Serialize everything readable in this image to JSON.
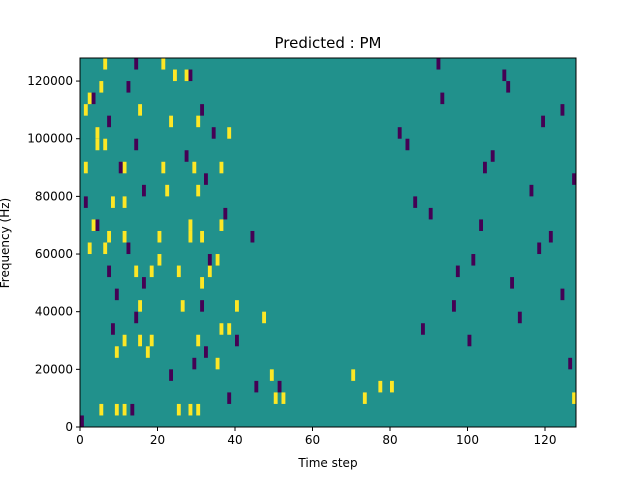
{
  "chart_data": {
    "type": "heatmap",
    "title": "Predicted : PM",
    "xlabel": "Time step",
    "ylabel": "Frequency (Hz)",
    "xlim": [
      0,
      128
    ],
    "ylim": [
      0,
      128000
    ],
    "x_ticks": [
      0,
      20,
      40,
      60,
      80,
      100,
      120
    ],
    "x_tick_labels": [
      "0",
      "20",
      "40",
      "60",
      "80",
      "100",
      "120"
    ],
    "y_ticks": [
      0,
      20000,
      40000,
      60000,
      80000,
      100000,
      120000
    ],
    "y_tick_labels": [
      "0",
      "20000",
      "40000",
      "60000",
      "80000",
      "100000",
      "120000"
    ],
    "grid": false,
    "colors": {
      "background": "#21918c",
      "high": "#fde725",
      "low": "#440154"
    },
    "rows": 32,
    "cols": 128,
    "bin_height_hz": 4000,
    "high_cells": [
      [
        1,
        5
      ],
      [
        1,
        9
      ],
      [
        1,
        11
      ],
      [
        1,
        25
      ],
      [
        1,
        28
      ],
      [
        1,
        30
      ],
      [
        2,
        50
      ],
      [
        2,
        52
      ],
      [
        2,
        73
      ],
      [
        2,
        127
      ],
      [
        3,
        77
      ],
      [
        3,
        80
      ],
      [
        4,
        49
      ],
      [
        4,
        70
      ],
      [
        5,
        35
      ],
      [
        6,
        9
      ],
      [
        6,
        17
      ],
      [
        7,
        11
      ],
      [
        7,
        15
      ],
      [
        7,
        18
      ],
      [
        7,
        30
      ],
      [
        8,
        36
      ],
      [
        8,
        38
      ],
      [
        9,
        47
      ],
      [
        10,
        15
      ],
      [
        10,
        26
      ],
      [
        10,
        40
      ],
      [
        12,
        31
      ],
      [
        13,
        14
      ],
      [
        13,
        18
      ],
      [
        13,
        25
      ],
      [
        13,
        33
      ],
      [
        14,
        20
      ],
      [
        14,
        35
      ],
      [
        15,
        2
      ],
      [
        15,
        6
      ],
      [
        16,
        7
      ],
      [
        16,
        11
      ],
      [
        16,
        20
      ],
      [
        16,
        28
      ],
      [
        16,
        31
      ],
      [
        17,
        3
      ],
      [
        17,
        28
      ],
      [
        17,
        36
      ],
      [
        19,
        8
      ],
      [
        19,
        11
      ],
      [
        20,
        22
      ],
      [
        20,
        30
      ],
      [
        22,
        1
      ],
      [
        22,
        11
      ],
      [
        22,
        21
      ],
      [
        22,
        29
      ],
      [
        22,
        36
      ],
      [
        24,
        4
      ],
      [
        24,
        6
      ],
      [
        25,
        4
      ],
      [
        25,
        38
      ],
      [
        26,
        23
      ],
      [
        26,
        30
      ],
      [
        27,
        1
      ],
      [
        27,
        15
      ],
      [
        28,
        2
      ],
      [
        29,
        5
      ],
      [
        30,
        24
      ],
      [
        30,
        27
      ],
      [
        31,
        6
      ],
      [
        31,
        21
      ]
    ],
    "low_cells": [
      [
        0,
        0
      ],
      [
        1,
        13
      ],
      [
        2,
        38
      ],
      [
        3,
        45
      ],
      [
        3,
        51
      ],
      [
        4,
        23
      ],
      [
        5,
        29
      ],
      [
        6,
        32
      ],
      [
        7,
        40
      ],
      [
        8,
        8
      ],
      [
        9,
        14
      ],
      [
        10,
        31
      ],
      [
        11,
        9
      ],
      [
        12,
        16
      ],
      [
        13,
        7
      ],
      [
        14,
        33
      ],
      [
        15,
        12
      ],
      [
        16,
        44
      ],
      [
        17,
        4
      ],
      [
        18,
        37
      ],
      [
        19,
        1
      ],
      [
        20,
        16
      ],
      [
        21,
        32
      ],
      [
        22,
        10
      ],
      [
        23,
        27
      ],
      [
        24,
        14
      ],
      [
        25,
        34
      ],
      [
        26,
        7
      ],
      [
        27,
        31
      ],
      [
        28,
        3
      ],
      [
        29,
        12
      ],
      [
        30,
        28
      ],
      [
        31,
        14
      ],
      [
        8,
        88
      ],
      [
        10,
        96
      ],
      [
        12,
        111
      ],
      [
        14,
        101
      ],
      [
        16,
        121
      ],
      [
        18,
        90
      ],
      [
        20,
        116
      ],
      [
        22,
        104
      ],
      [
        24,
        84
      ],
      [
        26,
        119
      ],
      [
        28,
        93
      ],
      [
        30,
        109
      ],
      [
        5,
        126
      ],
      [
        7,
        100
      ],
      [
        9,
        113
      ],
      [
        11,
        124
      ],
      [
        13,
        97
      ],
      [
        15,
        118
      ],
      [
        17,
        103
      ],
      [
        19,
        86
      ],
      [
        21,
        127
      ],
      [
        23,
        106
      ],
      [
        25,
        82
      ],
      [
        27,
        124
      ],
      [
        29,
        110
      ],
      [
        31,
        92
      ]
    ]
  }
}
